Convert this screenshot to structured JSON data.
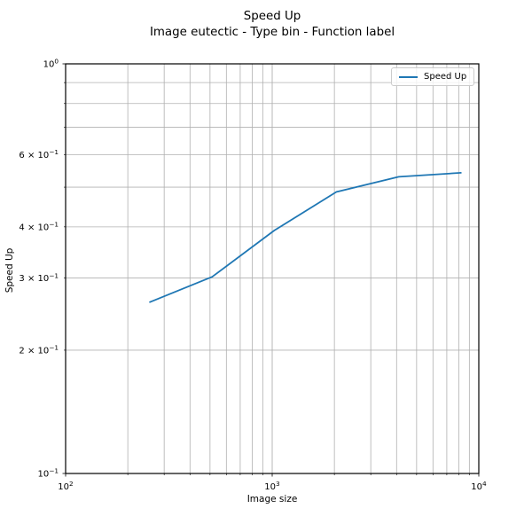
{
  "chart_data": {
    "type": "line",
    "title": "Speed Up",
    "subtitle": "Image eutectic - Type bin - Function label",
    "xlabel": "Image size",
    "ylabel": "Speed Up",
    "xscale": "log",
    "yscale": "log",
    "xlim": [
      100,
      10000
    ],
    "ylim": [
      0.1,
      1
    ],
    "grid": {
      "visible": true,
      "which": "both",
      "color": "#b0b0b0"
    },
    "legend": {
      "location": "upper right",
      "entries": [
        {
          "label": "Speed Up",
          "color": "#1f77b4"
        }
      ]
    },
    "series": [
      {
        "name": "Speed Up",
        "color": "#1f77b4",
        "x": [
          256,
          512,
          1024,
          2048,
          4096,
          8192
        ],
        "y": [
          0.262,
          0.302,
          0.392,
          0.487,
          0.53,
          0.542
        ]
      }
    ],
    "x_ticks": [
      {
        "value": 100,
        "label": "10",
        "sup": "2"
      },
      {
        "value": 1000,
        "label": "10",
        "sup": "3"
      },
      {
        "value": 10000,
        "label": "10",
        "sup": "4"
      }
    ],
    "y_ticks": [
      {
        "value": 1,
        "label": "10",
        "sup": "0"
      },
      {
        "value": 0.6,
        "label": "6 × 10",
        "sup": "−1"
      },
      {
        "value": 0.4,
        "label": "4 × 10",
        "sup": "−1"
      },
      {
        "value": 0.3,
        "label": "3 × 10",
        "sup": "−1"
      },
      {
        "value": 0.2,
        "label": "2 × 10",
        "sup": "−1"
      },
      {
        "value": 0.1,
        "label": "10",
        "sup": "−1"
      }
    ],
    "colors": {
      "line": "#1f77b4",
      "grid": "#b0b0b0",
      "axis": "#000000",
      "legend_border": "#cccccc",
      "background": "#ffffff"
    }
  }
}
